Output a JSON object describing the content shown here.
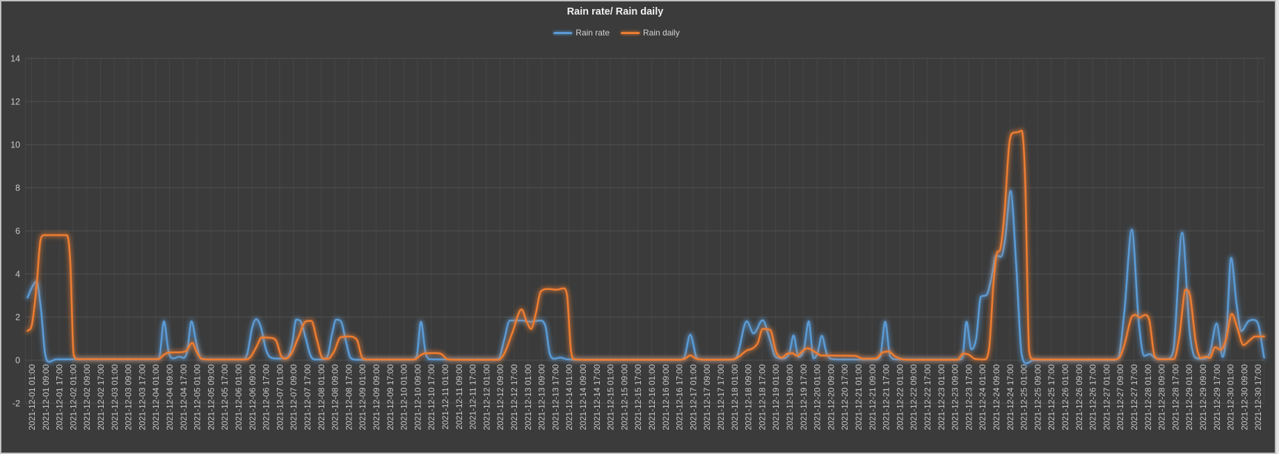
{
  "panel": {
    "background": "#3b3b3b",
    "frame_color": "#c2c2c2"
  },
  "chart_data": {
    "type": "line",
    "title": "Rain rate/ Rain daily",
    "legend_position": "top",
    "grid": true,
    "xlabel": "",
    "ylabel": "",
    "ylim": [
      -2,
      14
    ],
    "ytick_labels": [
      "-2",
      "0",
      "2",
      "4",
      "6",
      "8",
      "10",
      "12",
      "14"
    ],
    "grid_color_vertical": "#464646",
    "grid_color_horizontal": "#525252",
    "tick_label_color": "#c9c9c9",
    "x_tick_labels": [
      "2021-12-01 01:00",
      "2021-12-01 09:00",
      "2021-12-01 17:00",
      "2021-12-02 01:00",
      "2021-12-02 09:00",
      "2021-12-02 17:00",
      "2021-12-03 01:00",
      "2021-12-03 09:00",
      "2021-12-03 17:00",
      "2021-12-04 01:00",
      "2021-12-04 09:00",
      "2021-12-04 17:00",
      "2021-12-05 01:00",
      "2021-12-05 09:00",
      "2021-12-05 17:00",
      "2021-12-06 01:00",
      "2021-12-06 09:00",
      "2021-12-06 17:00",
      "2021-12-07 01:00",
      "2021-12-07 09:00",
      "2021-12-07 17:00",
      "2021-12-08 01:00",
      "2021-12-08 09:00",
      "2021-12-08 17:00",
      "2021-12-09 01:00",
      "2021-12-09 09:00",
      "2021-12-09 17:00",
      "2021-12-10 01:00",
      "2021-12-10 09:00",
      "2021-12-10 17:00",
      "2021-12-11 01:00",
      "2021-12-11 09:00",
      "2021-12-11 17:00",
      "2021-12-12 01:00",
      "2021-12-12 09:00",
      "2021-12-12 17:00",
      "2021-12-13 01:00",
      "2021-12-13 09:00",
      "2021-12-13 17:00",
      "2021-12-14 01:00",
      "2021-12-14 09:00",
      "2021-12-14 17:00",
      "2021-12-15 01:00",
      "2021-12-15 09:00",
      "2021-12-15 17:00",
      "2021-12-16 01:00",
      "2021-12-16 09:00",
      "2021-12-16 17:00",
      "2021-12-17 01:00",
      "2021-12-17 09:00",
      "2021-12-17 17:00",
      "2021-12-18 01:00",
      "2021-12-18 09:00",
      "2021-12-18 17:00",
      "2021-12-19 01:00",
      "2021-12-19 09:00",
      "2021-12-19 17:00",
      "2021-12-20 01:00",
      "2021-12-20 09:00",
      "2021-12-20 17:00",
      "2021-12-21 01:00",
      "2021-12-21 09:00",
      "2021-12-21 17:00",
      "2021-12-22 01:00",
      "2021-12-22 09:00",
      "2021-12-22 17:00",
      "2021-12-23 01:00",
      "2021-12-23 09:00",
      "2021-12-23 17:00",
      "2021-12-24 01:00",
      "2021-12-24 09:00",
      "2021-12-24 17:00",
      "2021-12-25 01:00",
      "2021-12-25 09:00",
      "2021-12-25 17:00",
      "2021-12-26 01:00",
      "2021-12-26 09:00",
      "2021-12-26 17:00",
      "2021-12-27 01:00",
      "2021-12-27 09:00",
      "2021-12-27 17:00",
      "2021-12-28 01:00",
      "2021-12-28 09:00",
      "2021-12-28 17:00",
      "2021-12-29 01:00",
      "2021-12-29 09:00",
      "2021-12-29 17:00",
      "2021-12-30 01:00",
      "2021-12-30 09:00",
      "2021-12-30 17:00"
    ],
    "series": [
      {
        "name": "Rain rate",
        "color": "#5B9BD5",
        "points": [
          [
            -0.3,
            2.9
          ],
          [
            0.0,
            3.35
          ],
          [
            0.35,
            3.65
          ],
          [
            0.7,
            2.2
          ],
          [
            0.95,
            0.4
          ],
          [
            1.25,
            -0.08
          ],
          [
            1.8,
            0.04
          ],
          [
            9.0,
            0.04
          ],
          [
            9.25,
            0.1
          ],
          [
            9.6,
            1.8
          ],
          [
            9.95,
            0.35
          ],
          [
            10.3,
            0.08
          ],
          [
            10.7,
            0.16
          ],
          [
            11.05,
            0.1
          ],
          [
            11.3,
            0.45
          ],
          [
            11.6,
            1.8
          ],
          [
            11.95,
            0.8
          ],
          [
            12.3,
            0.06
          ],
          [
            13.0,
            0.03
          ],
          [
            15.3,
            0.03
          ],
          [
            15.65,
            0.3
          ],
          [
            16.0,
            1.5
          ],
          [
            16.3,
            1.9
          ],
          [
            16.65,
            1.5
          ],
          [
            17.0,
            0.5
          ],
          [
            17.35,
            0.12
          ],
          [
            17.9,
            0.07
          ],
          [
            18.55,
            0.12
          ],
          [
            18.9,
            0.75
          ],
          [
            19.2,
            1.88
          ],
          [
            19.5,
            1.82
          ],
          [
            19.9,
            1.0
          ],
          [
            20.25,
            0.2
          ],
          [
            20.6,
            0.03
          ],
          [
            21.05,
            0.03
          ],
          [
            21.45,
            0.15
          ],
          [
            21.8,
            1.2
          ],
          [
            22.1,
            1.88
          ],
          [
            22.45,
            1.8
          ],
          [
            22.8,
            0.9
          ],
          [
            23.15,
            0.1
          ],
          [
            23.6,
            0.02
          ],
          [
            27.6,
            0.02
          ],
          [
            27.95,
            0.2
          ],
          [
            28.25,
            1.78
          ],
          [
            28.6,
            0.3
          ],
          [
            28.95,
            0.04
          ],
          [
            33.5,
            0.03
          ],
          [
            33.9,
            0.07
          ],
          [
            34.3,
            0.95
          ],
          [
            34.7,
            1.84
          ],
          [
            35.6,
            1.84
          ],
          [
            36.2,
            1.78
          ],
          [
            36.9,
            1.84
          ],
          [
            37.3,
            1.55
          ],
          [
            37.6,
            0.3
          ],
          [
            37.95,
            0.06
          ],
          [
            38.35,
            0.12
          ],
          [
            38.85,
            0.04
          ],
          [
            40.0,
            0.02
          ],
          [
            47.0,
            0.02
          ],
          [
            47.35,
            0.1
          ],
          [
            47.8,
            1.18
          ],
          [
            48.3,
            0.08
          ],
          [
            48.8,
            0.02
          ],
          [
            50.8,
            0.02
          ],
          [
            51.15,
            0.12
          ],
          [
            51.9,
            1.8
          ],
          [
            52.4,
            1.24
          ],
          [
            53.05,
            1.85
          ],
          [
            53.6,
            0.9
          ],
          [
            54.0,
            0.15
          ],
          [
            54.5,
            0.08
          ],
          [
            55.0,
            0.35
          ],
          [
            55.3,
            1.15
          ],
          [
            55.65,
            0.15
          ],
          [
            56.05,
            0.5
          ],
          [
            56.4,
            1.8
          ],
          [
            56.75,
            0.08
          ],
          [
            57.05,
            0.35
          ],
          [
            57.35,
            1.13
          ],
          [
            57.7,
            0.3
          ],
          [
            58.1,
            0.05
          ],
          [
            59.0,
            0.03
          ],
          [
            61.3,
            0.03
          ],
          [
            61.6,
            0.2
          ],
          [
            61.95,
            1.78
          ],
          [
            62.3,
            0.2
          ],
          [
            62.7,
            0.04
          ],
          [
            63.5,
            0.03
          ],
          [
            67.3,
            0.03
          ],
          [
            67.55,
            0.1
          ],
          [
            67.85,
            1.78
          ],
          [
            68.2,
            0.5
          ],
          [
            68.55,
            1.0
          ],
          [
            68.9,
            2.95
          ],
          [
            69.3,
            3.02
          ],
          [
            69.65,
            3.8
          ],
          [
            70.0,
            4.85
          ],
          [
            70.35,
            4.8
          ],
          [
            70.65,
            5.6
          ],
          [
            71.05,
            7.85
          ],
          [
            71.45,
            4.5
          ],
          [
            71.85,
            0.3
          ],
          [
            72.2,
            -0.15
          ],
          [
            72.7,
            0.0
          ],
          [
            78.5,
            0.0
          ],
          [
            78.85,
            0.08
          ],
          [
            79.3,
            2.2
          ],
          [
            79.85,
            6.05
          ],
          [
            80.35,
            1.8
          ],
          [
            80.75,
            0.2
          ],
          [
            81.15,
            0.28
          ],
          [
            81.6,
            0.08
          ],
          [
            82.4,
            0.05
          ],
          [
            82.85,
            0.4
          ],
          [
            83.5,
            5.92
          ],
          [
            84.05,
            1.3
          ],
          [
            84.45,
            0.12
          ],
          [
            85.0,
            0.06
          ],
          [
            85.5,
            0.3
          ],
          [
            86.0,
            1.7
          ],
          [
            86.45,
            0.15
          ],
          [
            86.75,
            1.6
          ],
          [
            87.05,
            4.75
          ],
          [
            87.45,
            2.6
          ],
          [
            87.8,
            1.35
          ],
          [
            88.3,
            1.8
          ],
          [
            88.65,
            1.87
          ],
          [
            89.0,
            1.7
          ],
          [
            89.45,
            0.12
          ]
        ]
      },
      {
        "name": "Rain daily",
        "color": "#ED7D31",
        "points": [
          [
            -0.3,
            1.35
          ],
          [
            0.0,
            1.6
          ],
          [
            0.35,
            3.4
          ],
          [
            0.65,
            5.6
          ],
          [
            0.9,
            5.8
          ],
          [
            2.55,
            5.8
          ],
          [
            2.8,
            4.6
          ],
          [
            3.05,
            0.25
          ],
          [
            3.35,
            0.05
          ],
          [
            9.2,
            0.05
          ],
          [
            9.6,
            0.25
          ],
          [
            9.95,
            0.35
          ],
          [
            10.9,
            0.37
          ],
          [
            11.25,
            0.45
          ],
          [
            11.65,
            0.8
          ],
          [
            12.0,
            0.35
          ],
          [
            12.35,
            0.06
          ],
          [
            13.0,
            0.03
          ],
          [
            15.4,
            0.03
          ],
          [
            15.85,
            0.12
          ],
          [
            16.3,
            0.6
          ],
          [
            16.7,
            1.05
          ],
          [
            17.4,
            1.03
          ],
          [
            17.75,
            0.9
          ],
          [
            18.1,
            0.2
          ],
          [
            18.4,
            0.06
          ],
          [
            18.85,
            0.3
          ],
          [
            19.35,
            1.05
          ],
          [
            19.9,
            1.8
          ],
          [
            20.3,
            1.82
          ],
          [
            20.7,
            0.95
          ],
          [
            21.1,
            0.1
          ],
          [
            21.5,
            0.06
          ],
          [
            21.95,
            0.4
          ],
          [
            22.4,
            1.05
          ],
          [
            23.0,
            1.1
          ],
          [
            23.6,
            0.95
          ],
          [
            24.0,
            0.1
          ],
          [
            24.4,
            0.03
          ],
          [
            27.8,
            0.03
          ],
          [
            28.15,
            0.2
          ],
          [
            28.55,
            0.32
          ],
          [
            29.3,
            0.33
          ],
          [
            29.75,
            0.28
          ],
          [
            30.15,
            0.05
          ],
          [
            30.7,
            0.02
          ],
          [
            33.9,
            0.02
          ],
          [
            34.3,
            0.3
          ],
          [
            34.9,
            1.3
          ],
          [
            35.55,
            2.35
          ],
          [
            35.95,
            1.75
          ],
          [
            36.25,
            1.45
          ],
          [
            36.6,
            2.2
          ],
          [
            36.95,
            3.18
          ],
          [
            37.5,
            3.3
          ],
          [
            38.1,
            3.27
          ],
          [
            38.6,
            3.33
          ],
          [
            38.85,
            3.05
          ],
          [
            39.15,
            0.4
          ],
          [
            39.4,
            0.04
          ],
          [
            40.5,
            0.02
          ],
          [
            47.1,
            0.02
          ],
          [
            47.45,
            0.08
          ],
          [
            47.8,
            0.22
          ],
          [
            48.25,
            0.06
          ],
          [
            49.0,
            0.02
          ],
          [
            50.9,
            0.03
          ],
          [
            51.3,
            0.15
          ],
          [
            51.9,
            0.45
          ],
          [
            52.35,
            0.55
          ],
          [
            52.7,
            0.8
          ],
          [
            53.05,
            1.45
          ],
          [
            53.6,
            1.4
          ],
          [
            54.05,
            0.35
          ],
          [
            54.45,
            0.12
          ],
          [
            54.85,
            0.3
          ],
          [
            55.2,
            0.32
          ],
          [
            55.55,
            0.2
          ],
          [
            55.95,
            0.42
          ],
          [
            56.3,
            0.55
          ],
          [
            56.8,
            0.4
          ],
          [
            57.3,
            0.22
          ],
          [
            59.8,
            0.2
          ],
          [
            60.3,
            0.07
          ],
          [
            61.25,
            0.07
          ],
          [
            61.75,
            0.35
          ],
          [
            62.2,
            0.4
          ],
          [
            62.65,
            0.18
          ],
          [
            63.2,
            0.04
          ],
          [
            64.0,
            0.02
          ],
          [
            67.2,
            0.02
          ],
          [
            67.6,
            0.3
          ],
          [
            68.0,
            0.26
          ],
          [
            68.45,
            0.06
          ],
          [
            69.15,
            0.03
          ],
          [
            69.5,
            0.6
          ],
          [
            69.8,
            3.5
          ],
          [
            70.05,
            4.95
          ],
          [
            70.3,
            5.15
          ],
          [
            70.6,
            6.8
          ],
          [
            70.95,
            10.0
          ],
          [
            71.25,
            10.55
          ],
          [
            71.6,
            10.58
          ],
          [
            71.85,
            10.65
          ],
          [
            72.1,
            8.5
          ],
          [
            72.4,
            0.4
          ],
          [
            72.65,
            0.05
          ],
          [
            73.5,
            0.03
          ],
          [
            78.6,
            0.03
          ],
          [
            78.95,
            0.12
          ],
          [
            79.35,
            0.8
          ],
          [
            79.8,
            1.95
          ],
          [
            80.1,
            2.1
          ],
          [
            80.45,
            1.98
          ],
          [
            80.8,
            2.1
          ],
          [
            81.1,
            1.9
          ],
          [
            81.5,
            0.2
          ],
          [
            81.9,
            0.04
          ],
          [
            82.9,
            0.05
          ],
          [
            83.3,
            1.1
          ],
          [
            83.75,
            3.27
          ],
          [
            84.05,
            3.05
          ],
          [
            84.5,
            0.8
          ],
          [
            84.85,
            0.1
          ],
          [
            85.2,
            0.16
          ],
          [
            85.5,
            0.1
          ],
          [
            85.9,
            0.6
          ],
          [
            86.3,
            0.48
          ],
          [
            86.7,
            1.0
          ],
          [
            87.1,
            2.15
          ],
          [
            87.5,
            1.5
          ],
          [
            87.95,
            0.7
          ],
          [
            88.4,
            0.92
          ],
          [
            88.8,
            1.1
          ],
          [
            89.45,
            1.1
          ]
        ]
      }
    ]
  }
}
